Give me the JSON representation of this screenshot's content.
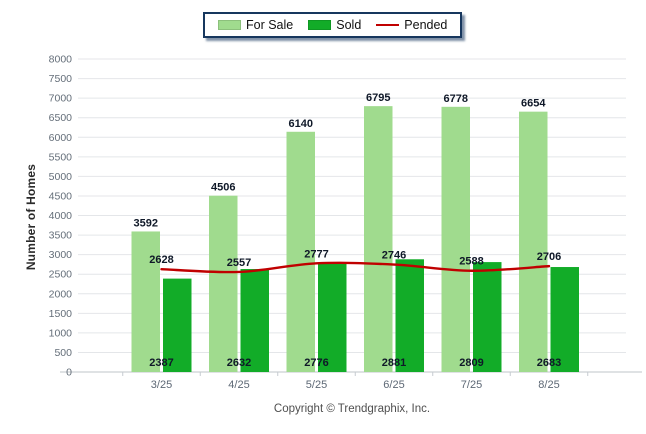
{
  "legend": {
    "items": [
      {
        "label": "For Sale",
        "color": "#A0DB8E",
        "type": "swatch"
      },
      {
        "label": "Sold",
        "color": "#12AC28",
        "type": "swatch"
      },
      {
        "label": "Pended",
        "color": "#C00000",
        "type": "line"
      }
    ]
  },
  "footer": {
    "copyright": "Copyright © Trendgraphix, Inc."
  },
  "chart_data": {
    "type": "bar",
    "categories": [
      "3/25",
      "4/25",
      "5/25",
      "6/25",
      "7/25",
      "8/25"
    ],
    "series": [
      {
        "name": "For Sale",
        "type": "bar",
        "color": "#A0DB8E",
        "values": [
          3592,
          4506,
          6140,
          6795,
          6778,
          6654
        ],
        "label_position": "above-bar"
      },
      {
        "name": "Sold",
        "type": "bar",
        "color": "#12AC28",
        "values": [
          2387,
          2632,
          2776,
          2881,
          2809,
          2683
        ],
        "label_position": "inside-bottom"
      },
      {
        "name": "Pended",
        "type": "line",
        "color": "#C00000",
        "values": [
          2628,
          2557,
          2777,
          2746,
          2588,
          2706
        ],
        "label_position": "above-line"
      }
    ],
    "title": "",
    "xlabel": "",
    "ylabel": "Number of Homes",
    "ylim": [
      0,
      8000
    ],
    "ytick_step": 500,
    "grid": true,
    "legend_position": "top-center"
  }
}
